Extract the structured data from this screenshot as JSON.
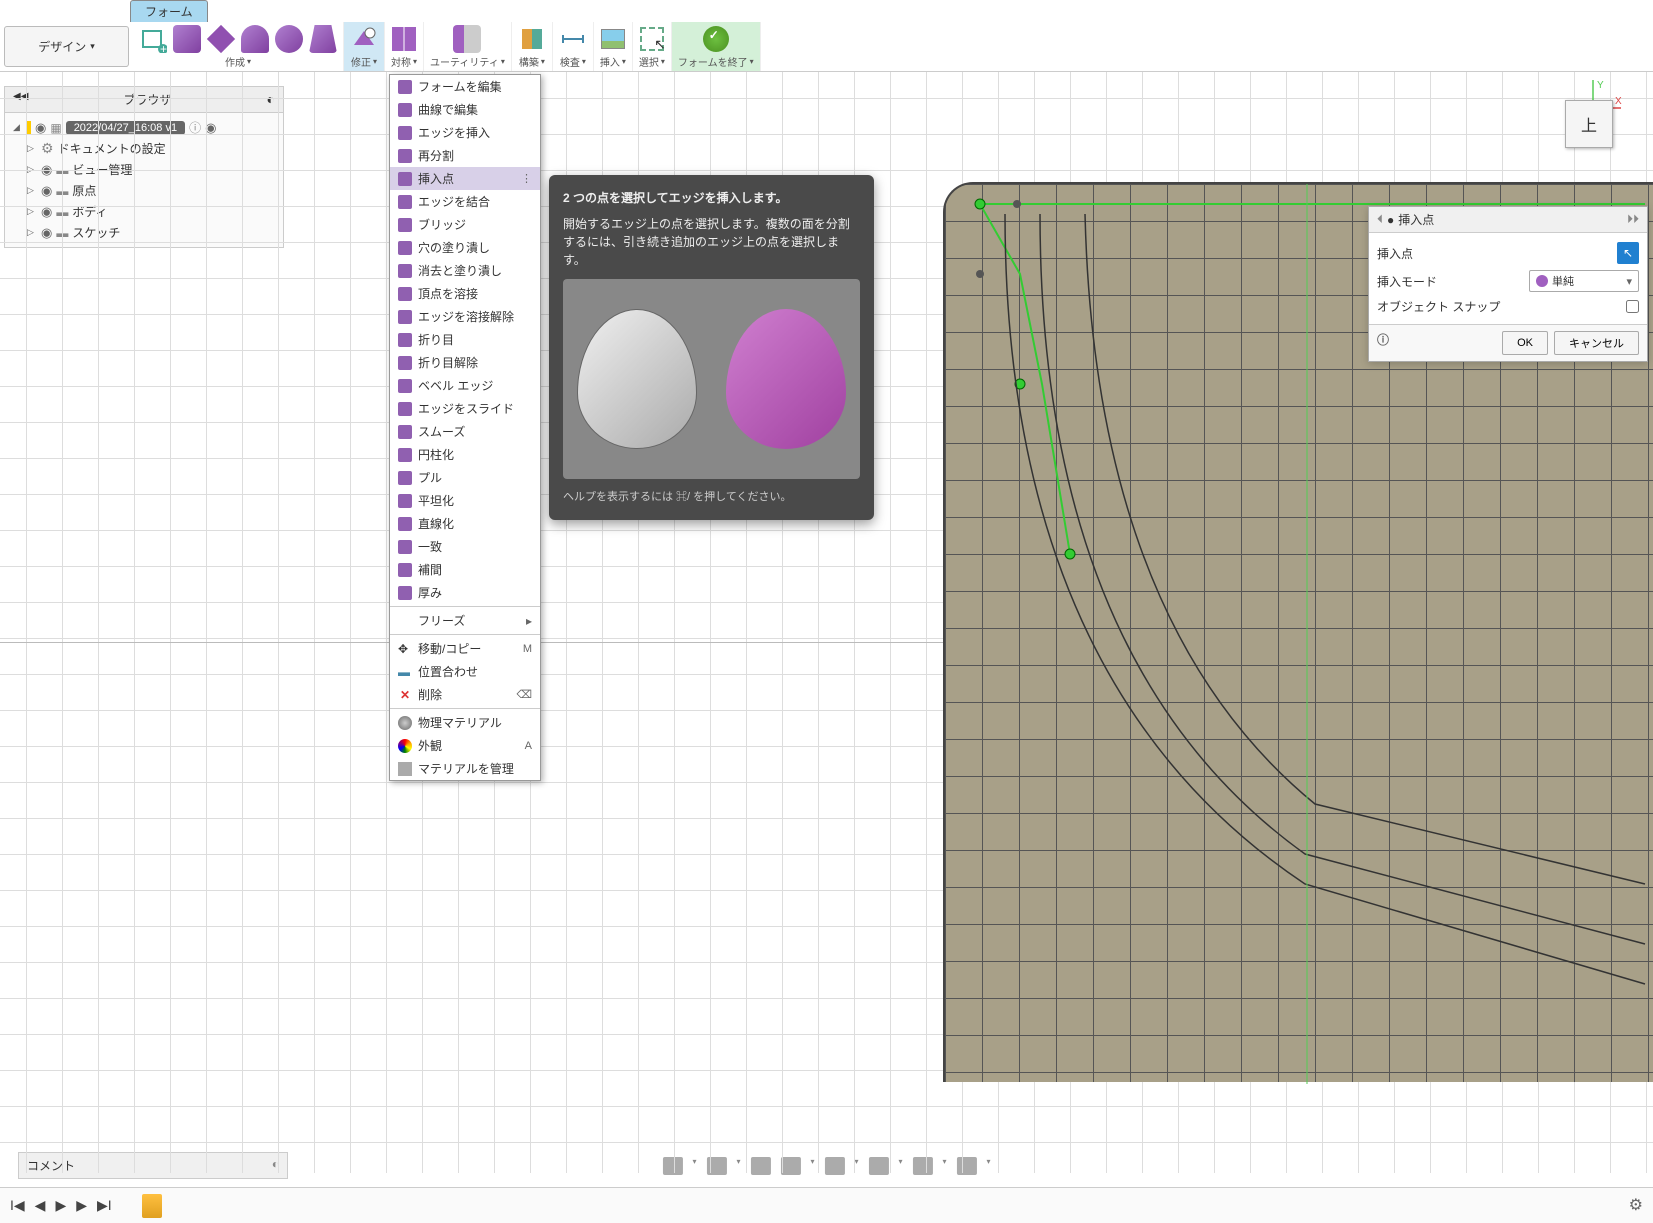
{
  "ribbonTab": "フォーム",
  "designLabel": "デザイン",
  "toolGroups": {
    "create": "作成",
    "modify": "修正",
    "symmetry": "対称",
    "utility": "ユーティリティ",
    "construct": "構築",
    "inspect": "検査",
    "insert": "挿入",
    "select": "選択",
    "finish": "フォームを終了"
  },
  "browser": {
    "title": "ブラウザ",
    "version": "2022/04/27_16:08 v1",
    "items": [
      "ドキュメントの設定",
      "ビュー管理",
      "原点",
      "ボディ",
      "スケッチ"
    ]
  },
  "menu": {
    "items": [
      "フォームを編集",
      "曲線で編集",
      "エッジを挿入",
      "再分割",
      "挿入点",
      "エッジを結合",
      "ブリッジ",
      "穴の塗り潰し",
      "消去と塗り潰し",
      "頂点を溶接",
      "エッジを溶接解除",
      "折り目",
      "折り目解除",
      "ベベル エッジ",
      "エッジをスライド",
      "スムーズ",
      "円柱化",
      "プル",
      "平坦化",
      "直線化",
      "一致",
      "補間",
      "厚み"
    ],
    "freeze": "フリーズ",
    "moveCopy": "移動/コピー",
    "moveShortcut": "M",
    "align": "位置合わせ",
    "delete": "削除",
    "physMat": "物理マテリアル",
    "appearance": "外観",
    "appearanceShortcut": "A",
    "manageMat": "マテリアルを管理",
    "highlightIndex": 4
  },
  "tooltip": {
    "title": "2 つの点を選択してエッジを挿入します。",
    "body": "開始するエッジ上の点を選択します。複数の面を分割するには、引き続き追加のエッジ上の点を選択します。",
    "help": "ヘルプを表示するには ⌘/ を押してください。"
  },
  "panel": {
    "title": "挿入点",
    "rows": {
      "insertPoint": "挿入点",
      "insertMode": "挿入モード",
      "modeValue": "単純",
      "snap": "オブジェクト スナップ"
    },
    "ok": "OK",
    "cancel": "キャンセル"
  },
  "viewCube": "上",
  "comment": "コメント",
  "colors": {
    "ribbonActive": "#d0e8f5",
    "menuHighlight": "#d8d0e8",
    "tooltip": "#4a4a4a",
    "green": "#3c3",
    "model": "#a8a088"
  }
}
